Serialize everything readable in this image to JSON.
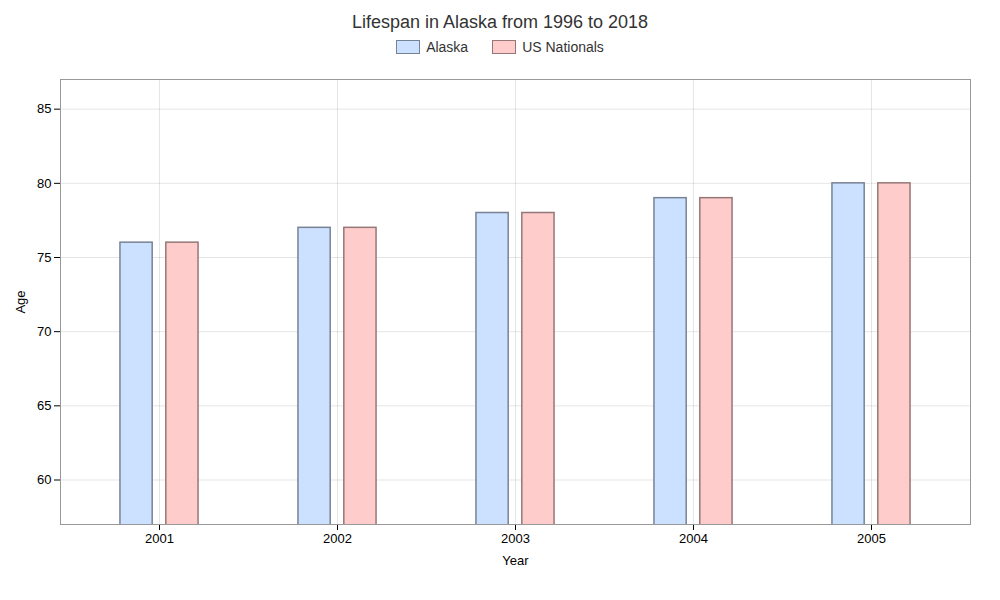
{
  "chart_data": {
    "type": "bar",
    "title": "Lifespan in Alaska from 1996 to 2018",
    "xlabel": "Year",
    "ylabel": "Age",
    "categories": [
      "2001",
      "2002",
      "2003",
      "2004",
      "2005"
    ],
    "series": [
      {
        "name": "Alaska",
        "color": "#cce0ff",
        "values": [
          76,
          77,
          78,
          79,
          80
        ]
      },
      {
        "name": "US Nationals",
        "color": "#ffcccc",
        "values": [
          76,
          77,
          78,
          79,
          80
        ]
      }
    ],
    "ylim": [
      57,
      87
    ],
    "yticks": [
      60,
      65,
      70,
      75,
      80,
      85
    ],
    "grid": true,
    "legend": "top"
  }
}
